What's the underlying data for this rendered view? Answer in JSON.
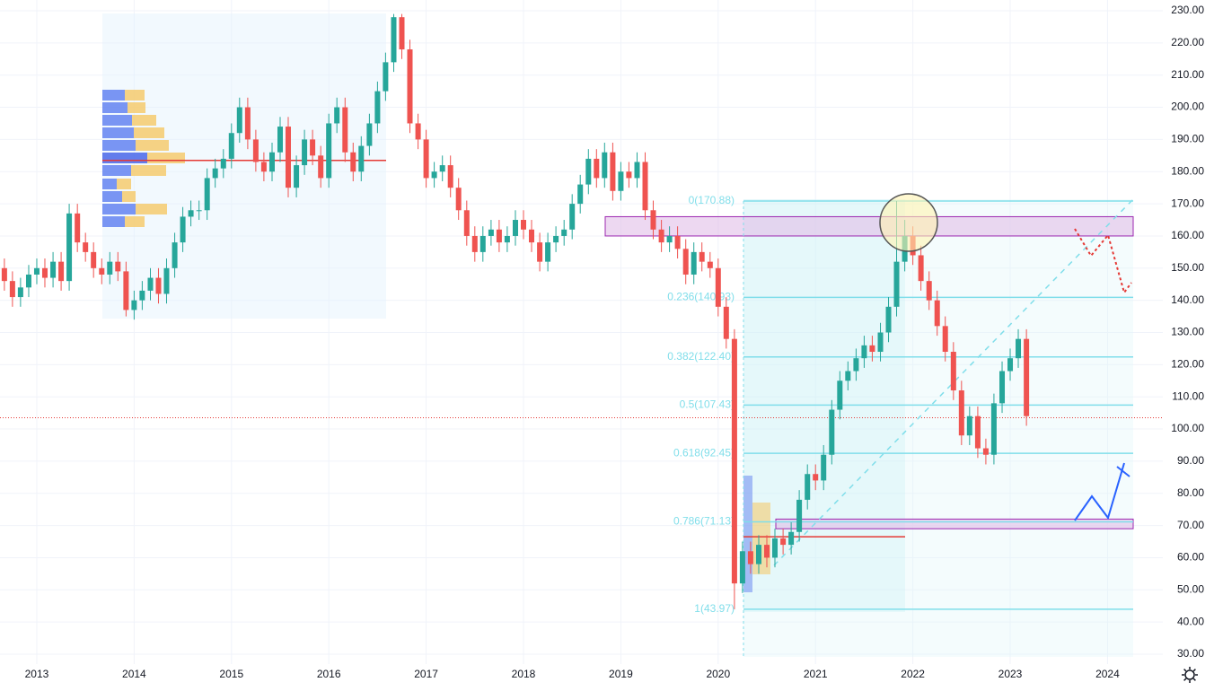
{
  "chart_data": {
    "type": "candlestick",
    "x": [
      2012.667,
      2012.75,
      2012.833,
      2012.917,
      2013,
      2013.083,
      2013.167,
      2013.25,
      2013.333,
      2013.417,
      2013.5,
      2013.583,
      2013.667,
      2013.75,
      2013.833,
      2013.917,
      2014,
      2014.083,
      2014.167,
      2014.25,
      2014.333,
      2014.417,
      2014.5,
      2014.583,
      2014.667,
      2014.75,
      2014.833,
      2014.917,
      2015,
      2015.083,
      2015.167,
      2015.25,
      2015.333,
      2015.417,
      2015.5,
      2015.583,
      2015.667,
      2015.75,
      2015.833,
      2015.917,
      2016,
      2016.083,
      2016.167,
      2016.25,
      2016.333,
      2016.417,
      2016.5,
      2016.583,
      2016.667,
      2016.75,
      2016.833,
      2016.917,
      2017,
      2017.083,
      2017.167,
      2017.25,
      2017.333,
      2017.417,
      2017.5,
      2017.583,
      2017.667,
      2017.75,
      2017.833,
      2017.917,
      2018,
      2018.083,
      2018.167,
      2018.25,
      2018.333,
      2018.417,
      2018.5,
      2018.583,
      2018.667,
      2018.75,
      2018.833,
      2018.917,
      2019,
      2019.083,
      2019.167,
      2019.25,
      2019.333,
      2019.417,
      2019.5,
      2019.583,
      2019.667,
      2019.75,
      2019.833,
      2019.917,
      2020,
      2020.083,
      2020.167,
      2020.25,
      2020.333,
      2020.417,
      2020.5,
      2020.583,
      2020.667,
      2020.75,
      2020.833,
      2020.917,
      2021,
      2021.083,
      2021.167,
      2021.25,
      2021.333,
      2021.417,
      2021.5,
      2021.583,
      2021.667,
      2021.75,
      2021.833,
      2021.917,
      2022,
      2022.083,
      2022.167,
      2022.25,
      2022.333,
      2022.417,
      2022.5,
      2022.583,
      2022.667,
      2022.75,
      2022.833,
      2022.917,
      2023,
      2023.083,
      2023.167
    ],
    "open": [
      150,
      146,
      141,
      144,
      148,
      150,
      147,
      152,
      146,
      167,
      158,
      155,
      150,
      148,
      152,
      149,
      137,
      140,
      143,
      147,
      142,
      150,
      158,
      166,
      168,
      168,
      178,
      181,
      184,
      192,
      200,
      190,
      183,
      180,
      186,
      194,
      175,
      182,
      190,
      185,
      178,
      195,
      200,
      186,
      180,
      188,
      195,
      205,
      214,
      228,
      218,
      195,
      190,
      178,
      180,
      182,
      175,
      168,
      160,
      155,
      160,
      162,
      158,
      160,
      165,
      162,
      158,
      152,
      158,
      160,
      162,
      170,
      176,
      184,
      178,
      186,
      174,
      180,
      178,
      183,
      168,
      162,
      158,
      160,
      156,
      148,
      155,
      152,
      150,
      138,
      128,
      52,
      62,
      58,
      64,
      60,
      66,
      64,
      68,
      78,
      86,
      84,
      92,
      106,
      115,
      118,
      122,
      126,
      124,
      130,
      138,
      152,
      160,
      154,
      146,
      140,
      132,
      124,
      112,
      98,
      104,
      94,
      92,
      108,
      118,
      122,
      128
    ],
    "high": [
      153,
      149,
      147,
      151,
      153,
      153,
      155,
      155,
      170,
      170,
      161,
      158,
      153,
      155,
      155,
      152,
      143,
      146,
      150,
      150,
      153,
      161,
      169,
      171,
      171,
      181,
      184,
      187,
      195,
      203,
      203,
      193,
      186,
      189,
      197,
      197,
      185,
      193,
      193,
      188,
      198,
      203,
      203,
      189,
      191,
      198,
      208,
      217,
      229,
      229,
      221,
      198,
      193,
      183,
      185,
      185,
      178,
      171,
      163,
      163,
      165,
      165,
      163,
      168,
      168,
      165,
      161,
      161,
      163,
      165,
      173,
      179,
      187,
      187,
      189,
      189,
      183,
      183,
      186,
      186,
      171,
      165,
      163,
      163,
      159,
      158,
      158,
      155,
      153,
      141,
      131,
      65,
      65,
      67,
      67,
      69,
      69,
      71,
      81,
      89,
      89,
      95,
      109,
      118,
      121,
      125,
      129,
      129,
      133,
      141,
      170.88,
      165,
      163,
      157,
      149,
      143,
      135,
      127,
      115,
      107,
      107,
      97,
      111,
      121,
      125,
      131,
      131
    ],
    "low": [
      143,
      138,
      138,
      141,
      145,
      144,
      144,
      143,
      143,
      155,
      152,
      147,
      145,
      145,
      146,
      135,
      134,
      137,
      140,
      139,
      139,
      147,
      155,
      163,
      165,
      165,
      175,
      178,
      181,
      189,
      187,
      180,
      177,
      177,
      183,
      172,
      172,
      179,
      182,
      175,
      175,
      192,
      183,
      177,
      177,
      185,
      192,
      202,
      211,
      215,
      192,
      187,
      175,
      175,
      177,
      172,
      165,
      157,
      152,
      152,
      157,
      155,
      155,
      157,
      159,
      155,
      149,
      149,
      155,
      157,
      159,
      167,
      173,
      175,
      175,
      171,
      171,
      175,
      175,
      165,
      159,
      155,
      155,
      153,
      145,
      145,
      149,
      147,
      135,
      125,
      43.97,
      49,
      55,
      55,
      57,
      57,
      61,
      61,
      65,
      75,
      81,
      81,
      89,
      103,
      112,
      115,
      119,
      121,
      121,
      127,
      135,
      149,
      151,
      143,
      137,
      129,
      121,
      109,
      95,
      95,
      91,
      89,
      89,
      105,
      115,
      119,
      101
    ],
    "close": [
      146,
      141,
      144,
      148,
      150,
      147,
      152,
      146,
      167,
      158,
      155,
      150,
      148,
      152,
      149,
      137,
      140,
      143,
      147,
      142,
      150,
      158,
      166,
      168,
      168,
      178,
      181,
      184,
      192,
      200,
      190,
      183,
      180,
      186,
      194,
      175,
      182,
      190,
      185,
      178,
      195,
      200,
      186,
      180,
      188,
      195,
      205,
      214,
      228,
      218,
      195,
      190,
      178,
      180,
      182,
      175,
      168,
      160,
      155,
      160,
      162,
      158,
      160,
      165,
      162,
      158,
      152,
      158,
      160,
      162,
      170,
      176,
      184,
      178,
      186,
      174,
      180,
      178,
      183,
      168,
      162,
      158,
      160,
      156,
      148,
      155,
      152,
      150,
      138,
      128,
      52,
      62,
      58,
      64,
      60,
      66,
      64,
      68,
      78,
      86,
      84,
      92,
      106,
      115,
      118,
      122,
      126,
      124,
      130,
      138,
      152,
      160,
      154,
      146,
      140,
      132,
      124,
      112,
      98,
      104,
      94,
      92,
      108,
      118,
      122,
      128,
      104
    ],
    "up_color": "#26a69a",
    "down_color": "#ef5350",
    "xlim": [
      2012.622,
      2024.568
    ],
    "xticks": [
      2013,
      2014,
      2015,
      2016,
      2017,
      2018,
      2019,
      2020,
      2021,
      2022,
      2023,
      2024
    ],
    "ylim": [
      26.93,
      233.35
    ],
    "yticks": [
      {
        "value": 30,
        "label": "30.00"
      },
      {
        "value": 40,
        "label": "40.00"
      },
      {
        "value": 50,
        "label": "50.00"
      },
      {
        "value": 60,
        "label": "60.00"
      },
      {
        "value": 70,
        "label": "70.00"
      },
      {
        "value": 80,
        "label": "80.00"
      },
      {
        "value": 90,
        "label": "90.00"
      },
      {
        "value": 100,
        "label": "100.00"
      },
      {
        "value": 110,
        "label": "110.00"
      },
      {
        "value": 120,
        "label": "120.00"
      },
      {
        "value": 130,
        "label": "130.00"
      },
      {
        "value": 140,
        "label": "140.00"
      },
      {
        "value": 150,
        "label": "150.00"
      },
      {
        "value": 160,
        "label": "160.00"
      },
      {
        "value": 170,
        "label": "170.00"
      },
      {
        "value": 180,
        "label": "180.00"
      },
      {
        "value": 190,
        "label": "190.00"
      },
      {
        "value": 200,
        "label": "200.00"
      },
      {
        "value": 210,
        "label": "210.00"
      },
      {
        "value": 220,
        "label": "220.00"
      },
      {
        "value": 230,
        "label": "230.00"
      }
    ],
    "grid": true,
    "fib_levels": [
      {
        "value": 170.88,
        "label": "0(170.88)"
      },
      {
        "value": 140.93,
        "label": "0.236(140.93)"
      },
      {
        "value": 122.4,
        "label": "0.382(122.40)"
      },
      {
        "value": 107.43,
        "label": "0.5(107.43)"
      },
      {
        "value": 92.45,
        "label": "0.618(92.45)"
      },
      {
        "value": 71.13,
        "label": "0.786(71.13)"
      },
      {
        "value": 43.97,
        "label": "1(43.97)"
      }
    ],
    "zones": [
      [
        160,
        166
      ],
      [
        69,
        72
      ]
    ],
    "poc_levels": [
      183.5,
      66.5
    ],
    "current_price": 103.5
  }
}
